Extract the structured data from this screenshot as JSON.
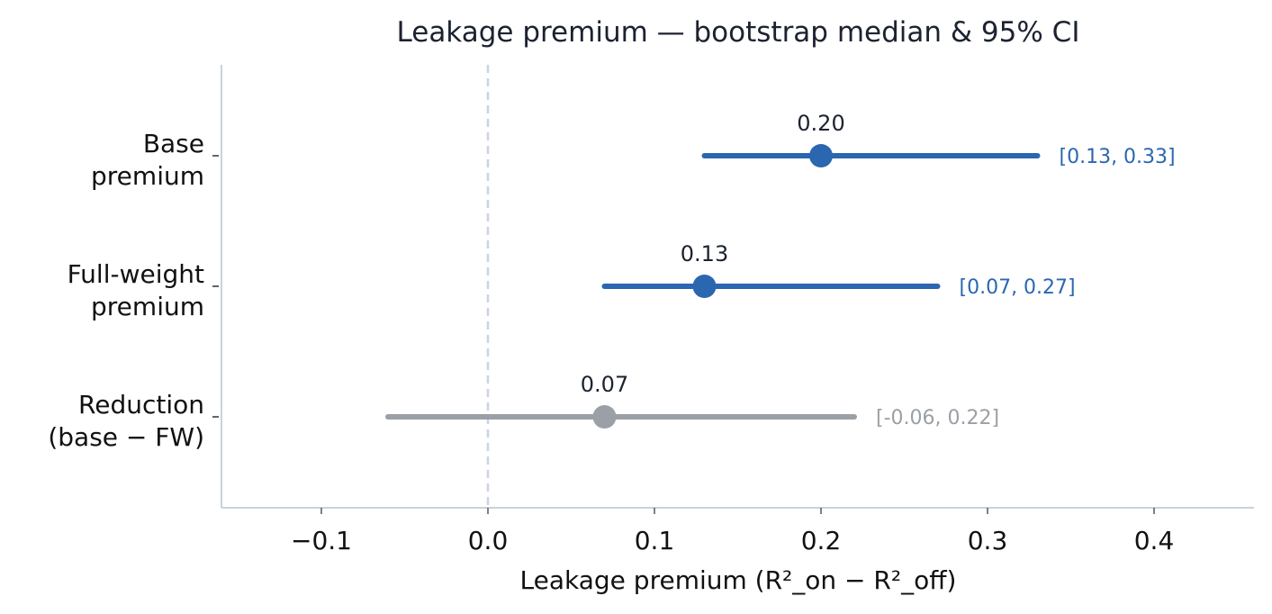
{
  "chart_data": {
    "type": "scatter",
    "title": "Leakage premium — bootstrap median & 95% CI",
    "xlabel": "Leakage premium  (R²_on − R²_off)",
    "ylabel": "",
    "xlim": [
      -0.16,
      0.46
    ],
    "xticks": [
      -0.1,
      0.0,
      0.1,
      0.2,
      0.3,
      0.4
    ],
    "xtick_labels": [
      "−0.1",
      "0.0",
      "0.1",
      "0.2",
      "0.3",
      "0.4"
    ],
    "reference_line": {
      "x": 0.0,
      "style": "dashed",
      "color": "#c9d3e2"
    },
    "grid": false,
    "legend": "none",
    "colors": {
      "primary": "#2b67b0",
      "muted": "#9aa0a6",
      "axis": "#c8d2dc",
      "text": "#1c2230"
    },
    "series": [
      {
        "category_lines": [
          "Base",
          "premium"
        ],
        "median": 0.2,
        "ci_low": 0.13,
        "ci_high": 0.33,
        "value_label": "0.20",
        "ci_label": "[0.13, 0.33]",
        "color": "#2b67b0"
      },
      {
        "category_lines": [
          "Full-weight",
          "premium"
        ],
        "median": 0.13,
        "ci_low": 0.07,
        "ci_high": 0.27,
        "value_label": "0.13",
        "ci_label": "[0.07, 0.27]",
        "color": "#2b67b0"
      },
      {
        "category_lines": [
          "Reduction",
          "(base − FW)"
        ],
        "median": 0.07,
        "ci_low": -0.06,
        "ci_high": 0.22,
        "value_label": "0.07",
        "ci_label": "[-0.06, 0.22]",
        "color": "#9aa0a6"
      }
    ]
  }
}
